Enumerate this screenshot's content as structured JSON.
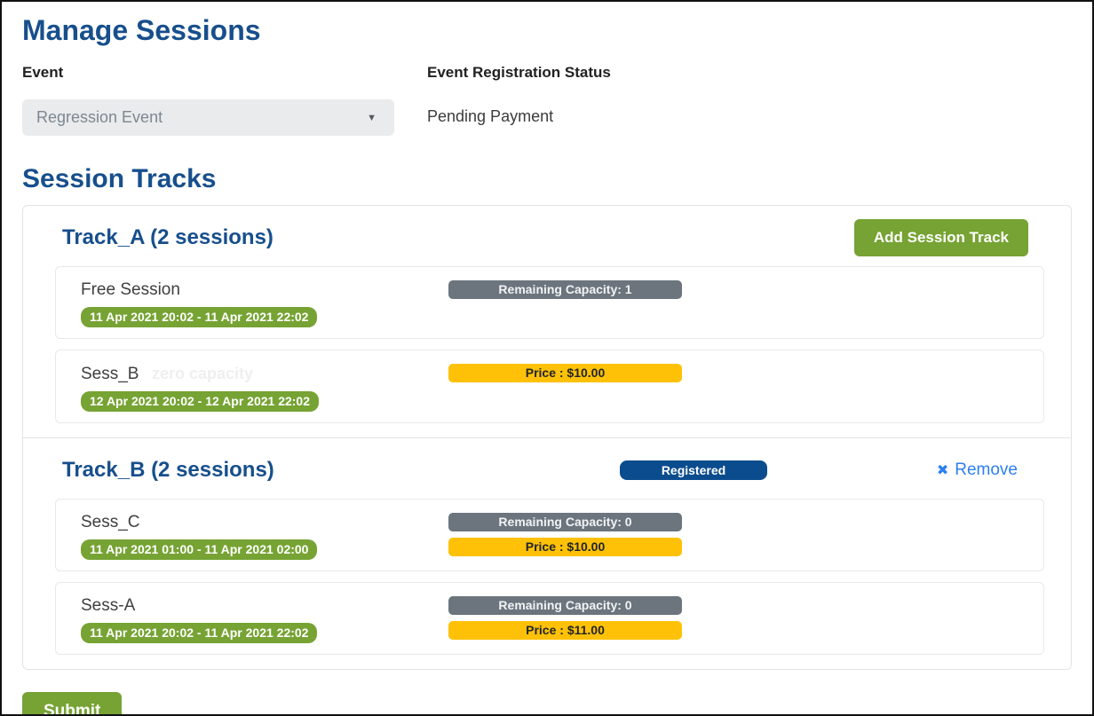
{
  "page": {
    "title": "Manage Sessions",
    "section_title": "Session Tracks"
  },
  "event": {
    "label": "Event",
    "selected_value": "Regression Event",
    "status_label": "Event Registration Status",
    "status_value": "Pending Payment"
  },
  "actions": {
    "add_track_label": "Add Session Track",
    "submit_label": "Submit",
    "remove_label": "Remove",
    "remove_icon": "✖",
    "caret_icon": "▼"
  },
  "tracks": [
    {
      "name": "Track_A (2 sessions)",
      "sessions": [
        {
          "name": "Free Session",
          "date": "11 Apr 2021 20:02 - 11 Apr 2021 22:02",
          "capacity": "Remaining Capacity: 1"
        },
        {
          "name": "Sess_B",
          "note": "zero capacity",
          "date": "12 Apr 2021 20:02 - 12 Apr 2021 22:02",
          "price": "Price : $10.00"
        }
      ]
    },
    {
      "name": "Track_B (2 sessions)",
      "registered_label": "Registered",
      "sessions": [
        {
          "name": "Sess_C",
          "date": "11 Apr 2021 01:00 - 11 Apr 2021 02:00",
          "capacity": "Remaining Capacity: 0",
          "price": "Price : $10.00"
        },
        {
          "name": "Sess-A",
          "date": "11 Apr 2021 20:02 - 11 Apr 2021 22:02",
          "capacity": "Remaining Capacity: 0",
          "price": "Price : $11.00"
        }
      ]
    }
  ],
  "colors": {
    "heading_blue": "#174f8c",
    "button_green": "#76a333",
    "date_badge_green": "#76a333",
    "capacity_gray": "#6c757d",
    "price_yellow": "#ffc107",
    "registered_navy": "#0b4c8e",
    "link_blue": "#2d7ff0",
    "select_bg": "#e9ebed"
  }
}
